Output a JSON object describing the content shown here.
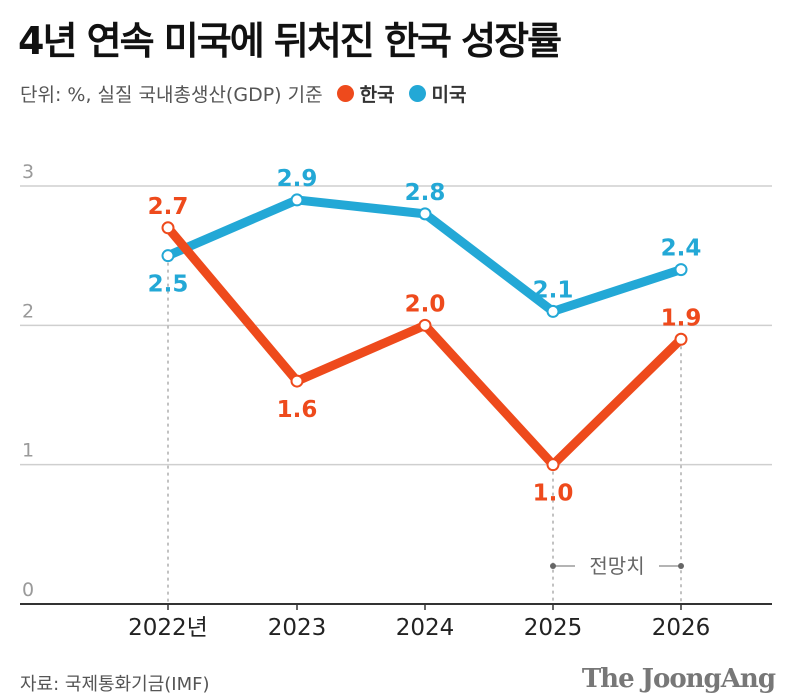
{
  "title": "4년 연속 미국에 뒤처진 한국 성장률",
  "subtitle": "단위: %, 실질 국내총생산(GDP) 기준",
  "legend": [
    {
      "label": "한국",
      "color": "#EE4A1C"
    },
    {
      "label": "미국",
      "color": "#23A8D6"
    }
  ],
  "source": "자료: 국제통화기금(IMF)",
  "brand": "The JoongAng",
  "chart_data": {
    "type": "line",
    "title": "4년 연속 미국에 뒤처진 한국 성장률",
    "xlabel": "",
    "ylabel": "%",
    "x": [
      "2022년",
      "2023",
      "2024",
      "2025",
      "2026"
    ],
    "ylim": [
      0,
      3
    ],
    "yticks": [
      0,
      1,
      2,
      3
    ],
    "grid": true,
    "series": [
      {
        "name": "한국",
        "color": "#EE4A1C",
        "values": [
          2.7,
          1.6,
          2.0,
          1.0,
          1.9
        ],
        "labels": [
          "2.7",
          "1.6",
          "2.0",
          "1.0",
          "1.9"
        ]
      },
      {
        "name": "미국",
        "color": "#23A8D6",
        "values": [
          2.5,
          2.9,
          2.8,
          2.1,
          2.4
        ],
        "labels": [
          "2.5",
          "2.9",
          "2.8",
          "2.1",
          "2.4"
        ]
      }
    ],
    "forecast_label": "전망치",
    "forecast_range": [
      "2025",
      "2026"
    ]
  }
}
